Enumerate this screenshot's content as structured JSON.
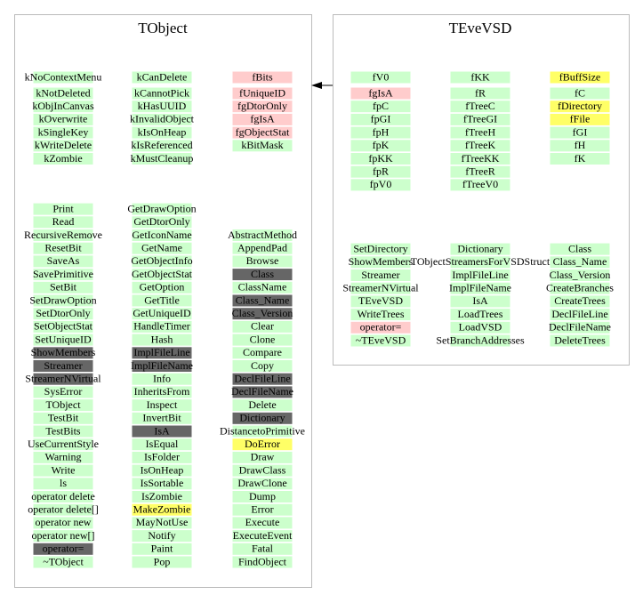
{
  "classes": [
    {
      "name": "TObject",
      "members": [
        [
          {
            "text": "kNoContextMenu",
            "fill": "#ccffcc"
          },
          {
            "text": "kNotDeleted",
            "fill": "#ccffcc"
          },
          {
            "text": "kObjInCanvas",
            "fill": "#ccffcc"
          },
          {
            "text": "kOverwrite",
            "fill": "#ccffcc"
          },
          {
            "text": "kSingleKey",
            "fill": "#ccffcc"
          },
          {
            "text": "kWriteDelete",
            "fill": "#ccffcc"
          },
          {
            "text": "kZombie",
            "fill": "#ccffcc"
          }
        ],
        [
          {
            "text": "kCanDelete",
            "fill": "#ccffcc"
          },
          {
            "text": "kCannotPick",
            "fill": "#ccffcc"
          },
          {
            "text": "kHasUUID",
            "fill": "#ccffcc"
          },
          {
            "text": "kInvalidObject",
            "fill": "#ccffcc"
          },
          {
            "text": "kIsOnHeap",
            "fill": "#ccffcc"
          },
          {
            "text": "kIsReferenced",
            "fill": "#ccffcc"
          },
          {
            "text": "kMustCleanup",
            "fill": "#ccffcc"
          }
        ],
        [
          {
            "text": "fBits",
            "fill": "#ffcccc"
          },
          {
            "text": "fUniqueID",
            "fill": "#ffcccc"
          },
          {
            "text": "fgDtorOnly",
            "fill": "#ffcccc"
          },
          {
            "text": "fgIsA",
            "fill": "#ffcccc"
          },
          {
            "text": "fgObjectStat",
            "fill": "#ffcccc"
          },
          {
            "text": "kBitMask",
            "fill": "#ccffcc"
          }
        ]
      ],
      "methods": [
        [
          {
            "text": "Print",
            "fill": "#ccffcc"
          },
          {
            "text": "Read",
            "fill": "#ccffcc"
          },
          {
            "text": "RecursiveRemove",
            "fill": "#ccffcc"
          },
          {
            "text": "ResetBit",
            "fill": "#ccffcc"
          },
          {
            "text": "SaveAs",
            "fill": "#ccffcc"
          },
          {
            "text": "SavePrimitive",
            "fill": "#ccffcc"
          },
          {
            "text": "SetBit",
            "fill": "#ccffcc"
          },
          {
            "text": "SetDrawOption",
            "fill": "#ccffcc"
          },
          {
            "text": "SetDtorOnly",
            "fill": "#ccffcc"
          },
          {
            "text": "SetObjectStat",
            "fill": "#ccffcc"
          },
          {
            "text": "SetUniqueID",
            "fill": "#ccffcc"
          },
          {
            "text": "ShowMembers",
            "fill": "#666666"
          },
          {
            "text": "Streamer",
            "fill": "#666666"
          },
          {
            "text": "StreamerNVirtual",
            "fill": "#666666"
          },
          {
            "text": "SysError",
            "fill": "#ccffcc"
          },
          {
            "text": "TObject",
            "fill": "#ccffcc"
          },
          {
            "text": "TestBit",
            "fill": "#ccffcc"
          },
          {
            "text": "TestBits",
            "fill": "#ccffcc"
          },
          {
            "text": "UseCurrentStyle",
            "fill": "#ccffcc"
          },
          {
            "text": "Warning",
            "fill": "#ccffcc"
          },
          {
            "text": "Write",
            "fill": "#ccffcc"
          },
          {
            "text": "ls",
            "fill": "#ccffcc"
          },
          {
            "text": "operator delete",
            "fill": "#ccffcc"
          },
          {
            "text": "operator delete[]",
            "fill": "#ccffcc"
          },
          {
            "text": "operator new",
            "fill": "#ccffcc"
          },
          {
            "text": "operator new[]",
            "fill": "#ccffcc"
          },
          {
            "text": "operator=",
            "fill": "#666666"
          },
          {
            "text": "~TObject",
            "fill": "#ccffcc"
          }
        ],
        [
          {
            "text": "GetDrawOption",
            "fill": "#ccffcc"
          },
          {
            "text": "GetDtorOnly",
            "fill": "#ccffcc"
          },
          {
            "text": "GetIconName",
            "fill": "#ccffcc"
          },
          {
            "text": "GetName",
            "fill": "#ccffcc"
          },
          {
            "text": "GetObjectInfo",
            "fill": "#ccffcc"
          },
          {
            "text": "GetObjectStat",
            "fill": "#ccffcc"
          },
          {
            "text": "GetOption",
            "fill": "#ccffcc"
          },
          {
            "text": "GetTitle",
            "fill": "#ccffcc"
          },
          {
            "text": "GetUniqueID",
            "fill": "#ccffcc"
          },
          {
            "text": "HandleTimer",
            "fill": "#ccffcc"
          },
          {
            "text": "Hash",
            "fill": "#ccffcc"
          },
          {
            "text": "ImplFileLine",
            "fill": "#666666"
          },
          {
            "text": "ImplFileName",
            "fill": "#666666"
          },
          {
            "text": "Info",
            "fill": "#ccffcc"
          },
          {
            "text": "InheritsFrom",
            "fill": "#ccffcc"
          },
          {
            "text": "Inspect",
            "fill": "#ccffcc"
          },
          {
            "text": "InvertBit",
            "fill": "#ccffcc"
          },
          {
            "text": "IsA",
            "fill": "#666666"
          },
          {
            "text": "IsEqual",
            "fill": "#ccffcc"
          },
          {
            "text": "IsFolder",
            "fill": "#ccffcc"
          },
          {
            "text": "IsOnHeap",
            "fill": "#ccffcc"
          },
          {
            "text": "IsSortable",
            "fill": "#ccffcc"
          },
          {
            "text": "IsZombie",
            "fill": "#ccffcc"
          },
          {
            "text": "MakeZombie",
            "fill": "#ffff66"
          },
          {
            "text": "MayNotUse",
            "fill": "#ccffcc"
          },
          {
            "text": "Notify",
            "fill": "#ccffcc"
          },
          {
            "text": "Paint",
            "fill": "#ccffcc"
          },
          {
            "text": "Pop",
            "fill": "#ccffcc"
          }
        ],
        [
          {
            "text": "AbstractMethod",
            "fill": "#ccffcc"
          },
          {
            "text": "AppendPad",
            "fill": "#ccffcc"
          },
          {
            "text": "Browse",
            "fill": "#ccffcc"
          },
          {
            "text": "Class",
            "fill": "#666666"
          },
          {
            "text": "ClassName",
            "fill": "#ccffcc"
          },
          {
            "text": "Class_Name",
            "fill": "#666666"
          },
          {
            "text": "Class_Version",
            "fill": "#666666"
          },
          {
            "text": "Clear",
            "fill": "#ccffcc"
          },
          {
            "text": "Clone",
            "fill": "#ccffcc"
          },
          {
            "text": "Compare",
            "fill": "#ccffcc"
          },
          {
            "text": "Copy",
            "fill": "#ccffcc"
          },
          {
            "text": "DeclFileLine",
            "fill": "#666666"
          },
          {
            "text": "DeclFileName",
            "fill": "#666666"
          },
          {
            "text": "Delete",
            "fill": "#ccffcc"
          },
          {
            "text": "Dictionary",
            "fill": "#666666"
          },
          {
            "text": "DistancetoPrimitive",
            "fill": "#ccffcc"
          },
          {
            "text": "DoError",
            "fill": "#ffff66"
          },
          {
            "text": "Draw",
            "fill": "#ccffcc"
          },
          {
            "text": "DrawClass",
            "fill": "#ccffcc"
          },
          {
            "text": "DrawClone",
            "fill": "#ccffcc"
          },
          {
            "text": "Dump",
            "fill": "#ccffcc"
          },
          {
            "text": "Error",
            "fill": "#ccffcc"
          },
          {
            "text": "Execute",
            "fill": "#ccffcc"
          },
          {
            "text": "ExecuteEvent",
            "fill": "#ccffcc"
          },
          {
            "text": "Fatal",
            "fill": "#ccffcc"
          },
          {
            "text": "FindObject",
            "fill": "#ccffcc"
          }
        ]
      ]
    },
    {
      "name": "TEveVSD",
      "members": [
        [
          {
            "text": "fV0",
            "fill": "#ccffcc"
          },
          {
            "text": "fgIsA",
            "fill": "#ffcccc"
          },
          {
            "text": "fpC",
            "fill": "#ccffcc"
          },
          {
            "text": "fpGI",
            "fill": "#ccffcc"
          },
          {
            "text": "fpH",
            "fill": "#ccffcc"
          },
          {
            "text": "fpK",
            "fill": "#ccffcc"
          },
          {
            "text": "fpKK",
            "fill": "#ccffcc"
          },
          {
            "text": "fpR",
            "fill": "#ccffcc"
          },
          {
            "text": "fpV0",
            "fill": "#ccffcc"
          }
        ],
        [
          {
            "text": "fKK",
            "fill": "#ccffcc"
          },
          {
            "text": "fR",
            "fill": "#ccffcc"
          },
          {
            "text": "fTreeC",
            "fill": "#ccffcc"
          },
          {
            "text": "fTreeGI",
            "fill": "#ccffcc"
          },
          {
            "text": "fTreeH",
            "fill": "#ccffcc"
          },
          {
            "text": "fTreeK",
            "fill": "#ccffcc"
          },
          {
            "text": "fTreeKK",
            "fill": "#ccffcc"
          },
          {
            "text": "fTreeR",
            "fill": "#ccffcc"
          },
          {
            "text": "fTreeV0",
            "fill": "#ccffcc"
          }
        ],
        [
          {
            "text": "fBuffSize",
            "fill": "#ffff66"
          },
          {
            "text": "fC",
            "fill": "#ccffcc"
          },
          {
            "text": "fDirectory",
            "fill": "#ffff66"
          },
          {
            "text": "fFile",
            "fill": "#ffff66"
          },
          {
            "text": "fGI",
            "fill": "#ccffcc"
          },
          {
            "text": "fH",
            "fill": "#ccffcc"
          },
          {
            "text": "fK",
            "fill": "#ccffcc"
          }
        ]
      ],
      "methods": [
        [
          {
            "text": "SetDirectory",
            "fill": "#ccffcc"
          },
          {
            "text": "ShowMembers",
            "fill": "#ccffcc"
          },
          {
            "text": "Streamer",
            "fill": "#ccffcc"
          },
          {
            "text": "StreamerNVirtual",
            "fill": "#ccffcc"
          },
          {
            "text": "TEveVSD",
            "fill": "#ccffcc"
          },
          {
            "text": "WriteTrees",
            "fill": "#ccffcc"
          },
          {
            "text": "operator=",
            "fill": "#ffcccc"
          },
          {
            "text": "~TEveVSD",
            "fill": "#ccffcc"
          }
        ],
        [
          {
            "text": "Dictionary",
            "fill": "#ccffcc"
          },
          {
            "text": "TObjectStreamersForVSDStruct",
            "fill": "#ccffcc"
          },
          {
            "text": "ImplFileLine",
            "fill": "#ccffcc"
          },
          {
            "text": "ImplFileName",
            "fill": "#ccffcc"
          },
          {
            "text": "IsA",
            "fill": "#ccffcc"
          },
          {
            "text": "LoadTrees",
            "fill": "#ccffcc"
          },
          {
            "text": "LoadVSD",
            "fill": "#ccffcc"
          },
          {
            "text": "SetBranchAddresses",
            "fill": "#ccffcc"
          }
        ],
        [
          {
            "text": "Class",
            "fill": "#ccffcc"
          },
          {
            "text": "Class_Name",
            "fill": "#ccffcc"
          },
          {
            "text": "Class_Version",
            "fill": "#ccffcc"
          },
          {
            "text": "CreateBranches",
            "fill": "#ccffcc"
          },
          {
            "text": "CreateTrees",
            "fill": "#ccffcc"
          },
          {
            "text": "DeclFileLine",
            "fill": "#ccffcc"
          },
          {
            "text": "DeclFileName",
            "fill": "#ccffcc"
          },
          {
            "text": "DeleteTrees",
            "fill": "#ccffcc"
          }
        ]
      ]
    }
  ]
}
